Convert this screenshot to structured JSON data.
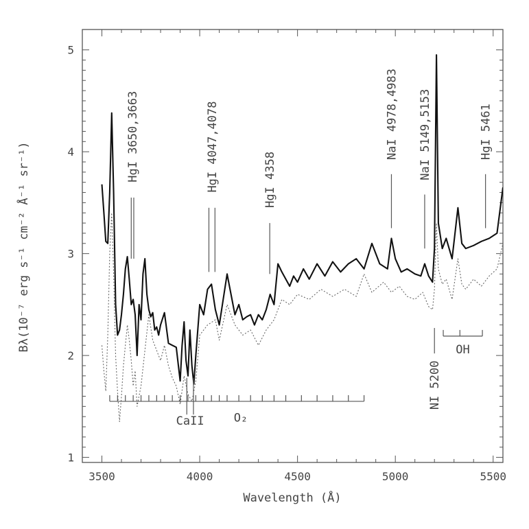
{
  "chart_data": {
    "type": "line",
    "title": "",
    "xlabel": "Wavelength (Å)",
    "ylabel": "Bλ(10⁻⁷ erg s⁻¹ cm⁻² Å⁻¹ sr⁻¹)",
    "xlim": [
      3400,
      5550
    ],
    "ylim": [
      0.95,
      5.2
    ],
    "xticks": [
      3500,
      4000,
      4500,
      5000,
      5500
    ],
    "yticks": [
      1,
      2,
      3,
      4,
      5
    ],
    "grid": false,
    "series": [
      {
        "style": "solid",
        "x": [
          3500,
          3510,
          3520,
          3530,
          3540,
          3550,
          3560,
          3570,
          3580,
          3590,
          3600,
          3610,
          3620,
          3630,
          3640,
          3650,
          3660,
          3670,
          3680,
          3690,
          3700,
          3710,
          3720,
          3730,
          3740,
          3750,
          3760,
          3770,
          3780,
          3790,
          3800,
          3820,
          3840,
          3860,
          3880,
          3900,
          3910,
          3920,
          3930,
          3940,
          3950,
          3960,
          3970,
          3980,
          4000,
          4020,
          4040,
          4060,
          4080,
          4100,
          4120,
          4140,
          4160,
          4180,
          4200,
          4220,
          4240,
          4260,
          4280,
          4300,
          4320,
          4340,
          4360,
          4380,
          4400,
          4420,
          4440,
          4460,
          4480,
          4500,
          4530,
          4560,
          4600,
          4640,
          4680,
          4720,
          4760,
          4800,
          4840,
          4880,
          4920,
          4960,
          4980,
          5000,
          5030,
          5060,
          5100,
          5130,
          5150,
          5170,
          5190,
          5200,
          5210,
          5220,
          5240,
          5260,
          5290,
          5320,
          5340,
          5360,
          5400,
          5440,
          5480,
          5520,
          5550
        ],
        "y": [
          3.68,
          3.4,
          3.12,
          3.1,
          3.6,
          4.38,
          3.6,
          2.5,
          2.2,
          2.25,
          2.4,
          2.6,
          2.85,
          2.97,
          2.75,
          2.5,
          2.55,
          2.4,
          2.0,
          2.5,
          2.35,
          2.8,
          2.95,
          2.6,
          2.45,
          2.38,
          2.42,
          2.25,
          2.28,
          2.2,
          2.3,
          2.42,
          2.12,
          2.1,
          2.08,
          1.75,
          2.1,
          2.33,
          1.95,
          1.8,
          2.25,
          1.9,
          1.72,
          2.0,
          2.5,
          2.4,
          2.65,
          2.7,
          2.45,
          2.3,
          2.55,
          2.8,
          2.6,
          2.4,
          2.5,
          2.35,
          2.38,
          2.4,
          2.3,
          2.4,
          2.35,
          2.45,
          2.6,
          2.5,
          2.9,
          2.82,
          2.75,
          2.68,
          2.78,
          2.72,
          2.85,
          2.75,
          2.9,
          2.78,
          2.92,
          2.82,
          2.9,
          2.95,
          2.85,
          3.1,
          2.9,
          2.85,
          3.15,
          2.95,
          2.82,
          2.85,
          2.8,
          2.78,
          2.9,
          2.78,
          2.72,
          3.05,
          4.95,
          3.3,
          3.05,
          3.15,
          2.95,
          3.45,
          3.1,
          3.05,
          3.08,
          3.12,
          3.15,
          3.2,
          3.65
        ]
      },
      {
        "style": "dotted",
        "x": [
          3500,
          3510,
          3520,
          3530,
          3540,
          3550,
          3560,
          3570,
          3580,
          3590,
          3600,
          3610,
          3620,
          3630,
          3640,
          3650,
          3660,
          3670,
          3680,
          3700,
          3720,
          3740,
          3760,
          3780,
          3800,
          3820,
          3840,
          3860,
          3880,
          3900,
          3920,
          3940,
          3960,
          3980,
          4000,
          4040,
          4080,
          4100,
          4140,
          4180,
          4220,
          4260,
          4300,
          4340,
          4380,
          4420,
          4460,
          4500,
          4560,
          4620,
          4680,
          4740,
          4800,
          4840,
          4880,
          4940,
          4980,
          5020,
          5060,
          5100,
          5140,
          5170,
          5190,
          5200,
          5210,
          5220,
          5240,
          5260,
          5290,
          5320,
          5340,
          5360,
          5400,
          5440,
          5480,
          5520,
          5550
        ],
        "y": [
          2.1,
          1.85,
          1.65,
          2.2,
          3.0,
          3.4,
          2.8,
          2.0,
          1.65,
          1.35,
          1.6,
          1.9,
          2.1,
          2.3,
          2.15,
          1.95,
          1.7,
          1.85,
          1.5,
          1.7,
          2.05,
          2.4,
          2.15,
          2.05,
          1.95,
          2.1,
          1.9,
          1.78,
          1.7,
          1.52,
          1.8,
          1.62,
          1.55,
          1.75,
          2.2,
          2.3,
          2.35,
          2.15,
          2.5,
          2.3,
          2.2,
          2.25,
          2.1,
          2.25,
          2.35,
          2.55,
          2.5,
          2.6,
          2.55,
          2.65,
          2.58,
          2.65,
          2.58,
          2.8,
          2.62,
          2.72,
          2.62,
          2.68,
          2.58,
          2.55,
          2.62,
          2.48,
          2.45,
          2.65,
          3.3,
          2.85,
          2.7,
          2.75,
          2.55,
          2.95,
          2.7,
          2.65,
          2.75,
          2.68,
          2.78,
          2.85,
          3.1
        ]
      }
    ],
    "annotations": [
      {
        "text": "HgI 3650,3663",
        "lines": [
          3650,
          3663
        ],
        "line_bottom": 2.95,
        "line_top": 3.55,
        "label_y": 3.7,
        "position": "above"
      },
      {
        "text": "HgI 4047,4078",
        "lines": [
          4047,
          4078
        ],
        "line_bottom": 2.82,
        "line_top": 3.45,
        "label_y": 3.6,
        "position": "above"
      },
      {
        "text": "HgI 4358",
        "lines": [
          4358
        ],
        "line_bottom": 2.8,
        "line_top": 3.3,
        "label_y": 3.45,
        "position": "above"
      },
      {
        "text": "NaI 4978,4983",
        "lines": [
          4980
        ],
        "line_bottom": 3.25,
        "line_top": 3.78,
        "label_y": 3.92,
        "position": "above"
      },
      {
        "text": "NaI 5149,5153",
        "lines": [
          5150
        ],
        "line_bottom": 3.05,
        "line_top": 3.58,
        "label_y": 3.72,
        "position": "above"
      },
      {
        "text": "HgI 5461",
        "lines": [
          5461
        ],
        "line_bottom": 3.25,
        "line_top": 3.78,
        "label_y": 3.92,
        "position": "above"
      },
      {
        "text": "NI 5200",
        "lines": [
          5200
        ],
        "line_bottom": 2.02,
        "line_top": 2.27,
        "label_y": 1.95,
        "position": "below"
      },
      {
        "text": "CaII",
        "lines": [
          3934,
          3968
        ],
        "line_bottom": 1.42,
        "line_top": 1.78,
        "label_y": 1.32,
        "position": "below"
      },
      {
        "text": "O₂",
        "bracket": true,
        "x_start": 3540,
        "x_end": 4840,
        "y": 1.55,
        "ticks": [
          3540,
          3580,
          3620,
          3660,
          3700,
          3740,
          3780,
          3820,
          3860,
          3900,
          3940,
          3980,
          4020,
          4060,
          4100,
          4140,
          4200,
          4260,
          4320,
          4380,
          4440,
          4520,
          4600,
          4680,
          4760,
          4840
        ],
        "label_x": 4210,
        "label_y": 1.35
      },
      {
        "text": "OH",
        "bracket": true,
        "x_start": 5245,
        "x_end": 5445,
        "y": 2.19,
        "ticks": [
          5245,
          5330,
          5445
        ],
        "label_x": 5345,
        "label_y": 2.02
      }
    ]
  }
}
